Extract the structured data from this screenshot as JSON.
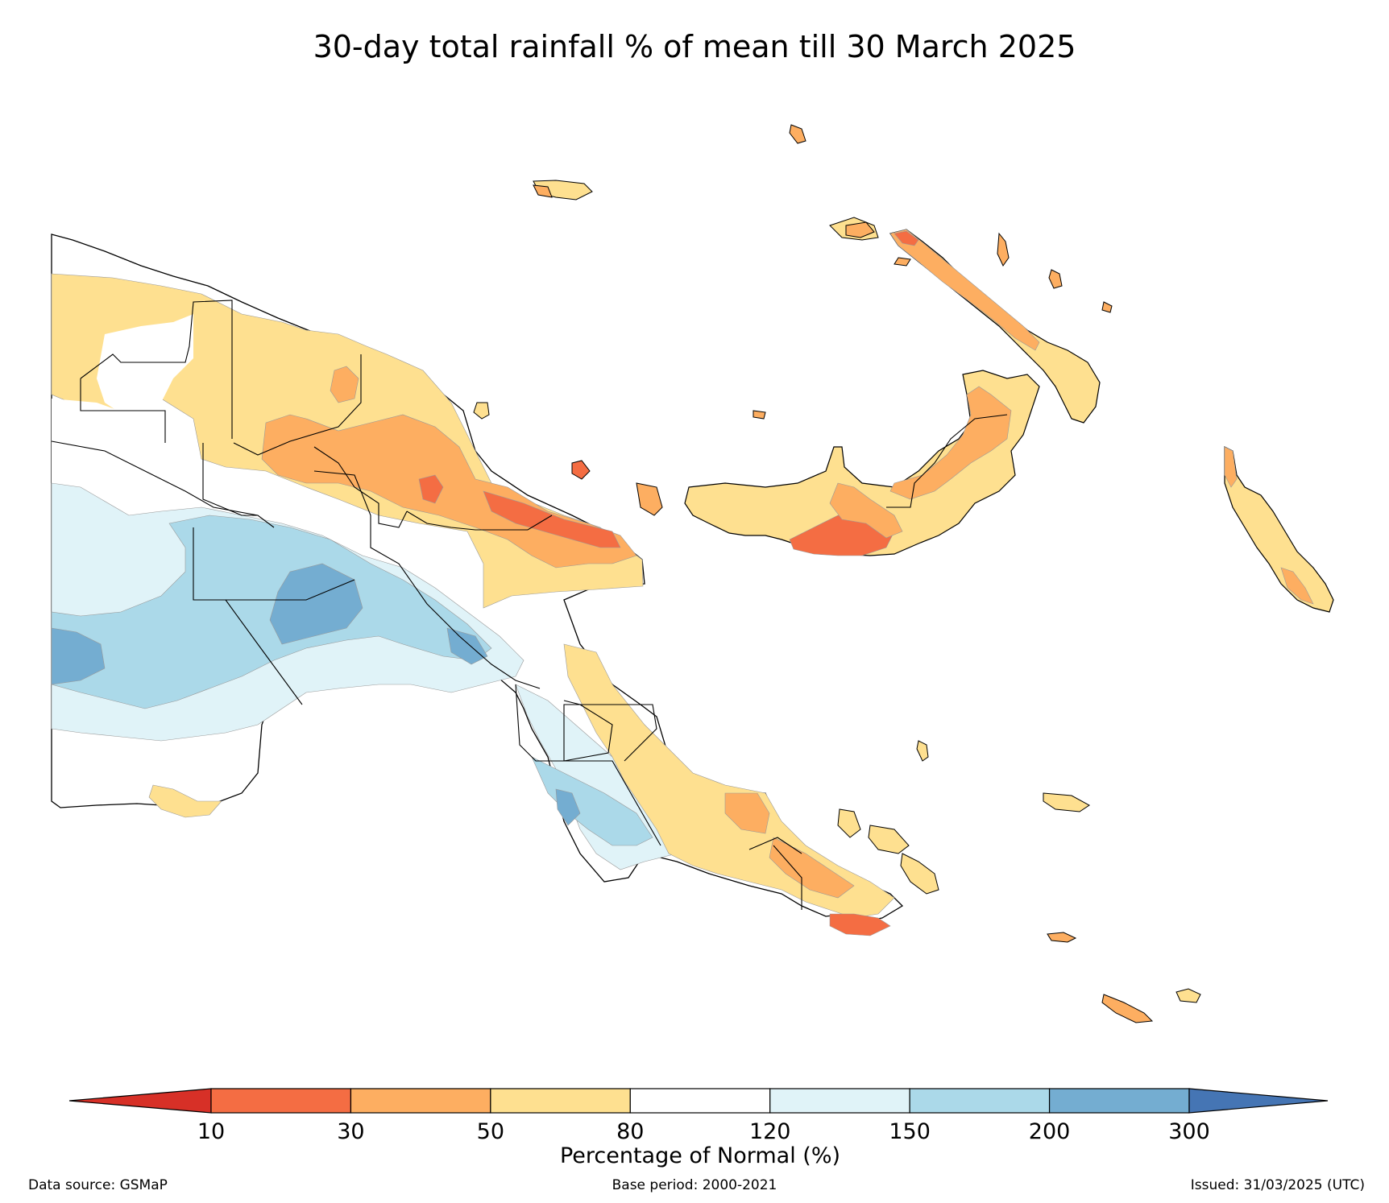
{
  "title": "30-day total rainfall % of mean till 30 March 2025",
  "colorbar": {
    "label": "Percentage of Normal (%)",
    "ticks": [
      "10",
      "30",
      "50",
      "80",
      "120",
      "150",
      "200",
      "300"
    ],
    "colors": {
      "below_10": "#d73027",
      "10_30": "#f46d43",
      "30_50": "#fdae61",
      "50_80": "#fee090",
      "80_120": "#ffffff",
      "120_150": "#e0f3f8",
      "150_200": "#abd9e9",
      "200_300": "#74add1",
      "above_300": "#4575b4"
    }
  },
  "footer": {
    "source": "Data source: GSMaP",
    "base_period": "Base period: 2000-2021",
    "issued": "Issued: 31/03/2025 (UTC)"
  }
}
